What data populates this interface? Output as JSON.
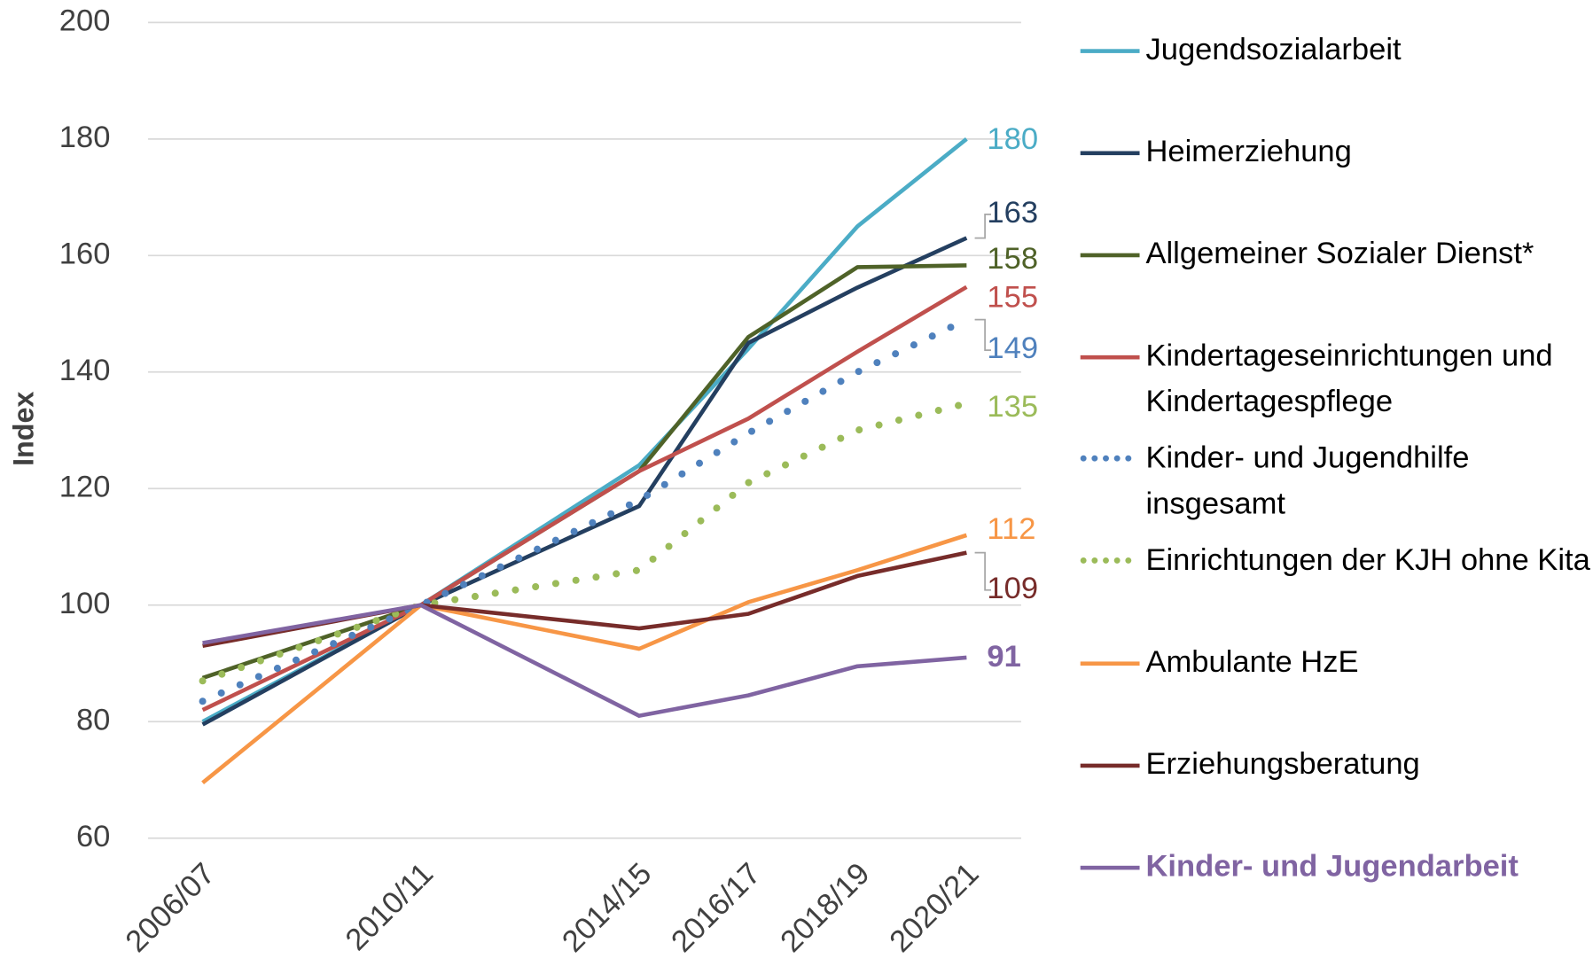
{
  "chart_data": {
    "type": "line",
    "y_label": "Index",
    "x": [
      2006,
      2010,
      2014,
      2016,
      2018,
      2020
    ],
    "xlim": [
      2005,
      2021
    ],
    "xticks": [
      {
        "value": 2006,
        "label": "2006/07"
      },
      {
        "value": 2010,
        "label": "2010/11"
      },
      {
        "value": 2014,
        "label": "2014/15"
      },
      {
        "value": 2016,
        "label": "2016/17"
      },
      {
        "value": 2018,
        "label": "2018/19"
      },
      {
        "value": 2020,
        "label": "2020/21"
      }
    ],
    "ylim": [
      60,
      200
    ],
    "yticks": [
      60,
      80,
      100,
      120,
      140,
      160,
      180,
      200
    ],
    "grid": true,
    "legend": "right",
    "series": [
      {
        "name": "Jugendsozialarbeit",
        "color": "#4bacc6",
        "values": [
          80,
          100,
          124,
          144,
          165,
          180
        ],
        "value_labels": [
          null,
          null,
          null,
          null,
          null,
          "180"
        ]
      },
      {
        "name": "Heimerziehung",
        "color": "#243f60",
        "values": [
          79.5,
          100,
          117,
          145,
          154.5,
          163
        ],
        "value_labels": [
          null,
          null,
          null,
          null,
          null,
          "163"
        ]
      },
      {
        "name": "Allgemeiner Sozialer Dienst*",
        "color": "#4f6228",
        "values": [
          87.5,
          100,
          123,
          146,
          158,
          158.3
        ],
        "value_labels": [
          null,
          null,
          null,
          null,
          null,
          "158"
        ]
      },
      {
        "name": "Kindertageseinrichtungen und Kindertagespflege",
        "color": "#c0504d",
        "values": [
          82,
          100,
          123,
          132,
          143.5,
          154.6
        ],
        "value_labels": [
          null,
          null,
          null,
          null,
          null,
          "155"
        ]
      },
      {
        "name": "Kinder- und Jugendhilfe insgesamt",
        "color": "#4f81bd",
        "dash": "dotted",
        "values": [
          83.5,
          100,
          118,
          129.5,
          140,
          149
        ],
        "value_labels": [
          null,
          null,
          null,
          null,
          null,
          "149"
        ]
      },
      {
        "name": "Einrichtungen der KJH ohne Kita",
        "color": "#9bbb59",
        "dash": "dotted",
        "values": [
          87,
          100,
          106,
          121,
          130,
          134.6
        ],
        "value_labels": [
          null,
          null,
          null,
          null,
          null,
          "135"
        ]
      },
      {
        "name": "Ambulante HzE",
        "color": "#f79646",
        "values": [
          69.5,
          100,
          92.5,
          100.5,
          106,
          112
        ],
        "value_labels": [
          null,
          null,
          null,
          null,
          null,
          "112"
        ]
      },
      {
        "name": "Erziehungsberatung",
        "color": "#772c2a",
        "values": [
          93,
          100,
          96,
          98.5,
          105,
          109
        ],
        "value_labels": [
          null,
          null,
          null,
          null,
          null,
          "109"
        ]
      },
      {
        "name": "Kinder- und Jugendarbeit",
        "color": "#8064a2",
        "values": [
          93.5,
          100,
          81,
          84.5,
          89.5,
          91
        ],
        "value_labels": [
          null,
          null,
          null,
          null,
          null,
          "91"
        ]
      }
    ]
  }
}
